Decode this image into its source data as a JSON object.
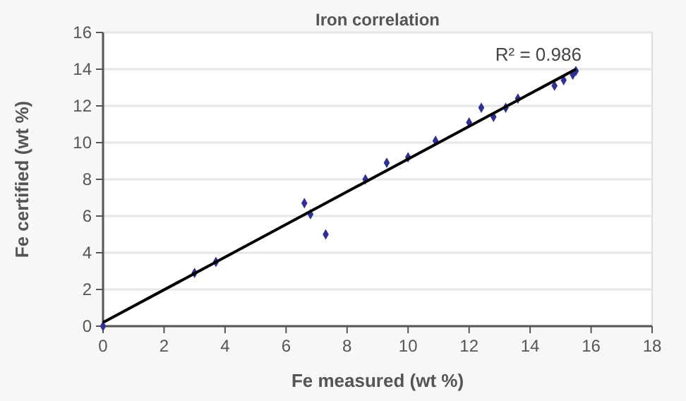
{
  "chart_data": {
    "type": "scatter",
    "title": "Iron correlation",
    "xlabel": "Fe measured (wt %)",
    "ylabel": "Fe certified (wt %)",
    "xlim": [
      0,
      18
    ],
    "ylim": [
      0,
      16
    ],
    "xticks": [
      0,
      2,
      4,
      6,
      8,
      10,
      12,
      14,
      16,
      18
    ],
    "yticks": [
      0,
      2,
      4,
      6,
      8,
      10,
      12,
      14,
      16
    ],
    "grid": "y",
    "series": [
      {
        "marker": "diamond",
        "color": "#2e3192",
        "x": [
          0,
          3.0,
          3.7,
          6.6,
          6.8,
          7.3,
          8.6,
          9.3,
          10.0,
          10.9,
          12.0,
          12.4,
          12.8,
          13.2,
          13.6,
          14.8,
          15.1,
          15.4,
          15.5
        ],
        "values": [
          0,
          2.9,
          3.5,
          6.7,
          6.1,
          5.0,
          8.0,
          8.9,
          9.2,
          10.1,
          11.1,
          11.9,
          11.4,
          11.9,
          12.4,
          13.1,
          13.4,
          13.7,
          13.9
        ]
      },
      {
        "type": "line",
        "color": "#000000",
        "x": [
          0,
          15.5
        ],
        "values": [
          0.2,
          14.0
        ]
      }
    ],
    "annotations": [
      {
        "text": "R² = 0.986",
        "x": 15.5,
        "y": 14.0
      }
    ]
  }
}
